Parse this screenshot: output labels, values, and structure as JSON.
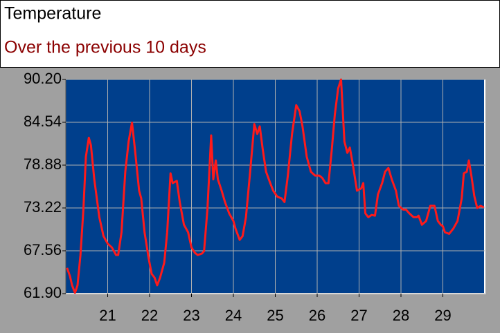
{
  "chart_data": {
    "type": "line",
    "title": "Temperature",
    "subtitle": "Over the previous 10 days",
    "x": [
      20.03,
      20.1,
      20.15,
      20.22,
      20.28,
      20.35,
      20.42,
      20.48,
      20.55,
      20.6,
      20.68,
      20.8,
      20.9,
      21.0,
      21.1,
      21.2,
      21.25,
      21.33,
      21.42,
      21.5,
      21.58,
      21.65,
      21.75,
      21.8,
      21.88,
      21.98,
      22.05,
      22.12,
      22.18,
      22.25,
      22.35,
      22.42,
      22.5,
      22.55,
      22.65,
      22.72,
      22.82,
      22.92,
      23.0,
      23.08,
      23.15,
      23.25,
      23.3,
      23.38,
      23.47,
      23.52,
      23.58,
      23.63,
      23.72,
      23.8,
      23.9,
      24.0,
      24.05,
      24.15,
      24.22,
      24.3,
      24.4,
      24.5,
      24.57,
      24.63,
      24.7,
      24.78,
      24.88,
      24.95,
      25.05,
      25.15,
      25.22,
      25.3,
      25.4,
      25.5,
      25.58,
      25.65,
      25.75,
      25.85,
      25.95,
      26.05,
      26.12,
      26.2,
      26.27,
      26.35,
      26.42,
      26.5,
      26.57,
      26.65,
      26.72,
      26.78,
      26.85,
      26.95,
      27.05,
      27.1,
      27.15,
      27.22,
      27.3,
      27.38,
      27.45,
      27.55,
      27.62,
      27.7,
      27.78,
      27.88,
      27.95,
      28.05,
      28.12,
      28.2,
      28.3,
      28.38,
      28.42,
      28.5,
      28.6,
      28.7,
      28.8,
      28.88,
      28.95,
      29.0,
      29.05,
      29.15,
      29.25,
      29.35,
      29.45,
      29.5,
      29.57,
      29.62,
      29.68,
      29.75,
      29.82,
      29.9,
      29.98
    ],
    "series": [
      {
        "name": "Temperature",
        "color": "#ff1a1a",
        "values": [
          65.3,
          64.2,
          63.0,
          62.0,
          63.0,
          67.0,
          73,
          80,
          82.5,
          81.5,
          77,
          72,
          69.5,
          68.5,
          68,
          67,
          67,
          70,
          78,
          82,
          84.5,
          81,
          75.5,
          74.5,
          70,
          66.5,
          64.5,
          64,
          63,
          64,
          66,
          70,
          77.8,
          76.5,
          76.8,
          74,
          71,
          70,
          68,
          67.3,
          67.0,
          67.2,
          67.5,
          73,
          82.8,
          77,
          79.5,
          77,
          75.5,
          74,
          72.5,
          71.5,
          70.5,
          69,
          69.5,
          72,
          78,
          84.3,
          83,
          84,
          81,
          78,
          76.5,
          75.5,
          74.7,
          74.5,
          74,
          77.5,
          83,
          86.8,
          86,
          84,
          80,
          78,
          77.5,
          77.5,
          77.2,
          76.5,
          76.5,
          81,
          85.5,
          89,
          90.2,
          82,
          80.5,
          81.2,
          79,
          75.5,
          75.8,
          76.5,
          72.5,
          72,
          72.3,
          72.2,
          75,
          76.5,
          78,
          78.5,
          77,
          75.5,
          73.5,
          73,
          73,
          72.5,
          72,
          72,
          72.2,
          71,
          71.5,
          73.5,
          73.5,
          71.5,
          71,
          70.8,
          70,
          69.8,
          70.5,
          71.5,
          74.5,
          77.8,
          78,
          79.5,
          77.5,
          74.8,
          73.2,
          73.5,
          73.3
        ]
      }
    ],
    "xlim": [
      20,
      30
    ],
    "xticks": [
      21,
      22,
      23,
      24,
      25,
      26,
      27,
      28,
      29
    ],
    "ylim": [
      61.9,
      90.2
    ],
    "yticks": [
      {
        "value": 61.9,
        "label": "61.90"
      },
      67.56,
      73.22,
      78.88,
      84.54,
      {
        "value": 90.2,
        "label": "90.20"
      }
    ],
    "grid": true
  }
}
